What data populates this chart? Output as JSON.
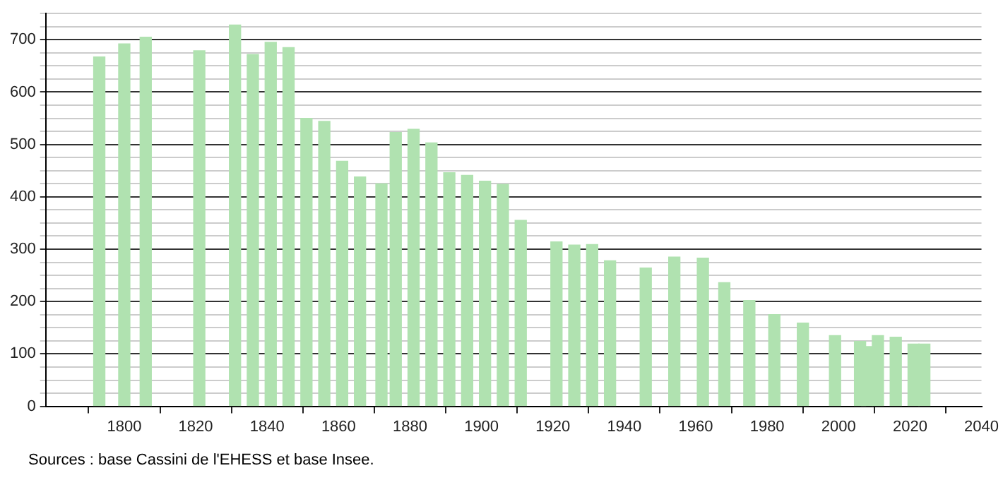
{
  "chart_data": {
    "type": "bar",
    "x": [
      1793,
      1800,
      1806,
      1821,
      1831,
      1836,
      1841,
      1846,
      1851,
      1856,
      1861,
      1866,
      1872,
      1876,
      1881,
      1886,
      1891,
      1896,
      1901,
      1906,
      1911,
      1921,
      1926,
      1931,
      1936,
      1946,
      1954,
      1962,
      1968,
      1975,
      1982,
      1990,
      1999,
      2006,
      2008,
      2011,
      2016,
      2021,
      2024
    ],
    "values": [
      667,
      692,
      705,
      679,
      728,
      672,
      695,
      685,
      550,
      544,
      468,
      438,
      425,
      523,
      529,
      503,
      446,
      441,
      430,
      424,
      355,
      314,
      308,
      309,
      278,
      264,
      285,
      283,
      236,
      202,
      175,
      159,
      135,
      124,
      114,
      135,
      132,
      119,
      119
    ],
    "color": "#b0e2b0",
    "xlim": [
      1778,
      2040
    ],
    "xticks": [
      1800,
      1820,
      1840,
      1860,
      1880,
      1900,
      1920,
      1940,
      1960,
      1980,
      2000,
      2020,
      2040
    ],
    "ylim": [
      0,
      750
    ],
    "yticks": [
      0,
      {
        "value": 25,
        "label": null
      },
      {
        "value": 50,
        "label": null
      },
      {
        "value": 75,
        "label": null
      },
      100,
      {
        "value": 125,
        "label": null
      },
      {
        "value": 150,
        "label": null
      },
      {
        "value": 175,
        "label": null
      },
      200,
      {
        "value": 225,
        "label": null
      },
      {
        "value": 250,
        "label": null
      },
      {
        "value": 275,
        "label": null
      },
      300,
      {
        "value": 325,
        "label": null
      },
      {
        "value": 350,
        "label": null
      },
      {
        "value": 375,
        "label": null
      },
      400,
      {
        "value": 425,
        "label": null
      },
      {
        "value": 450,
        "label": null
      },
      {
        "value": 475,
        "label": null
      },
      500,
      {
        "value": 525,
        "label": null
      },
      {
        "value": 550,
        "label": null
      },
      {
        "value": 575,
        "label": null
      },
      600,
      {
        "value": 625,
        "label": null
      },
      {
        "value": 650,
        "label": null
      },
      {
        "value": 675,
        "label": null
      },
      700,
      {
        "value": 725,
        "label": null
      },
      {
        "value": 750,
        "label": null
      }
    ],
    "grid": "y",
    "legend": false,
    "annotations": [
      "Sources : base Cassini de l'EHESS et base Insee."
    ]
  }
}
